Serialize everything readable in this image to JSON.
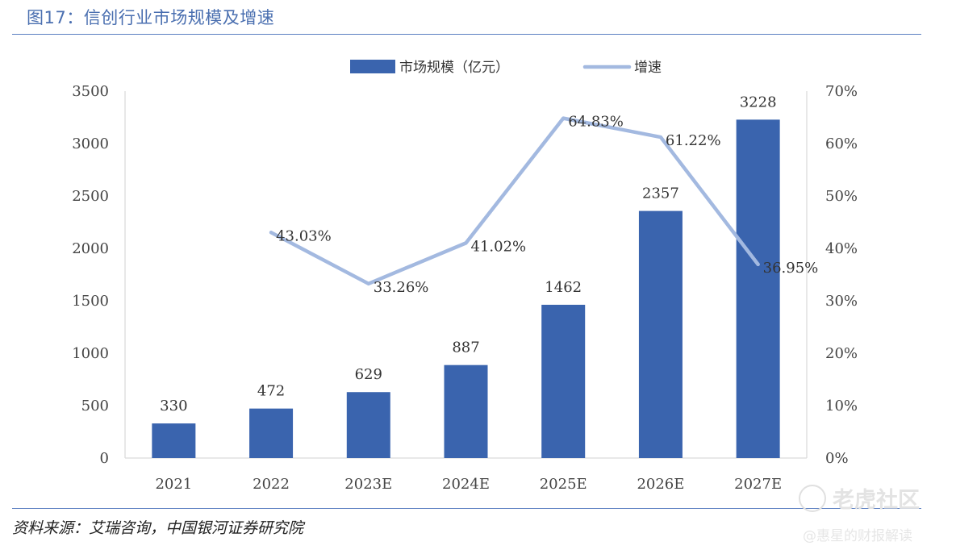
{
  "figure_title": "图17：信创行业市场规模及增速",
  "source_text": "资料来源：艾瑞咨询，中国银河证券研究院",
  "watermarks": {
    "brand": "老虎社区",
    "account": "@惠星的财报解读"
  },
  "colors": {
    "bar": "#3a64ae",
    "line": "#a3b9e0",
    "title": "#4a6fb0",
    "rule": "#5b7fc1"
  },
  "chart_data": {
    "type": "bar",
    "categories": [
      "2021",
      "2022",
      "2023E",
      "2024E",
      "2025E",
      "2026E",
      "2027E"
    ],
    "series": [
      {
        "name": "市场规模（亿元）",
        "type": "bar",
        "axis": "left",
        "values": [
          330,
          472,
          629,
          887,
          1462,
          2357,
          3228
        ],
        "labels": [
          "330",
          "472",
          "629",
          "887",
          "1462",
          "2357",
          "3228"
        ]
      },
      {
        "name": "增速",
        "type": "line",
        "axis": "right",
        "values": [
          null,
          43.03,
          33.26,
          41.02,
          64.83,
          61.22,
          36.95
        ],
        "labels": [
          "",
          "43.03%",
          "33.26%",
          "41.02%",
          "64.83%",
          "61.22%",
          "36.95%"
        ]
      }
    ],
    "ylim": [
      0,
      3500
    ],
    "y_ticks": [
      "0",
      "500",
      "1000",
      "1500",
      "2000",
      "2500",
      "3000",
      "3500"
    ],
    "y2lim": [
      0,
      70
    ],
    "y2_ticks": [
      "0%",
      "10%",
      "20%",
      "30%",
      "40%",
      "50%",
      "60%",
      "70%"
    ],
    "legend_position": "top-center",
    "grid": false
  }
}
